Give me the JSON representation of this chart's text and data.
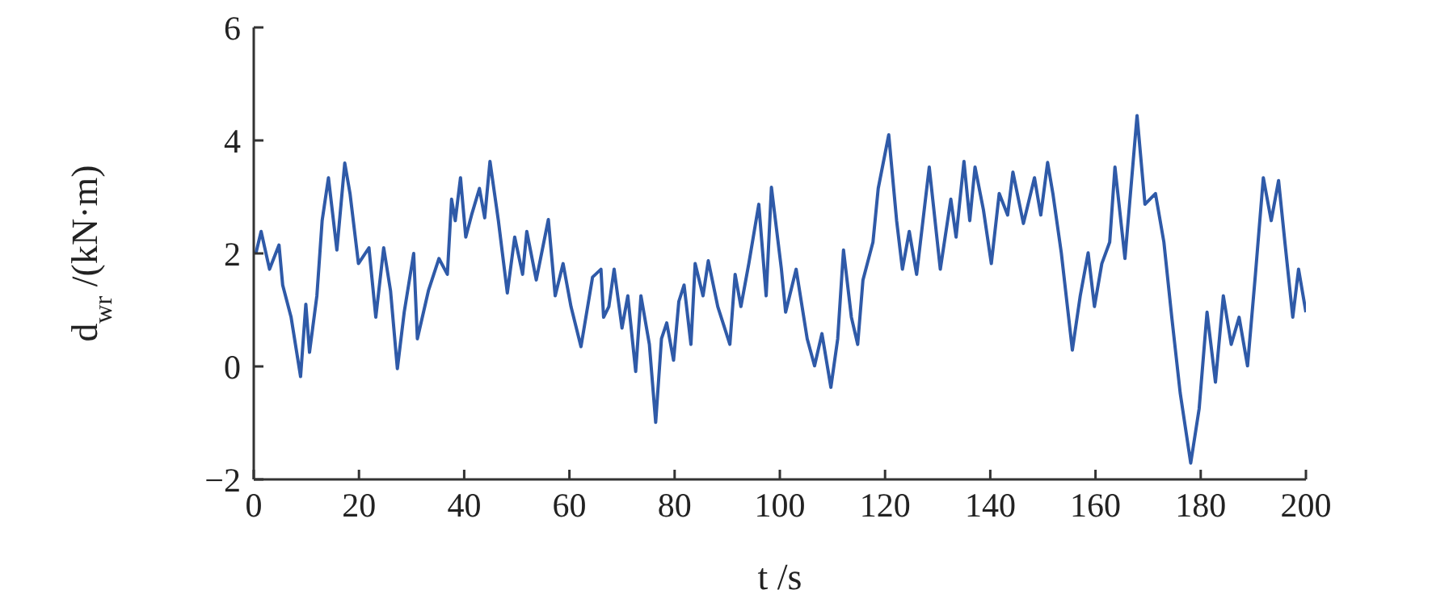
{
  "chart_data": {
    "type": "line",
    "xlabel": "t /s",
    "ylabel": "d$_{wr}$ /(kN·m)",
    "xlim": [
      0,
      200
    ],
    "xticks": [
      0,
      20,
      40,
      60,
      80,
      100,
      120,
      140,
      160,
      180,
      200
    ],
    "ylim": [
      -2,
      6
    ],
    "yticks": [
      -2,
      0,
      2,
      4,
      6
    ],
    "grid": false,
    "legend": false,
    "marker": "none",
    "line_style": "solid",
    "series": [
      {
        "color": "#2f5aa8",
        "x": [
          0.4,
          1.4,
          3,
          4.8,
          5.5,
          7.1,
          8.9,
          9.9,
          10.6,
          12,
          13,
          14.2,
          15.8,
          17.3,
          18.3,
          19.9,
          21.9,
          23.2,
          24.7,
          26,
          27.3,
          28.6,
          30.4,
          31.1,
          33.2,
          35.2,
          36.8,
          37.6,
          38.3,
          39.3,
          40.3,
          41.4,
          42.9,
          43.9,
          44.9,
          46.5,
          48.2,
          49.6,
          51.1,
          51.9,
          53.7,
          56,
          57.3,
          58.8,
          60.3,
          62.2,
          64.4,
          66,
          66.5,
          67.5,
          68.5,
          70,
          71.1,
          72.6,
          73.6,
          75.2,
          76.4,
          77.5,
          78.5,
          79.8,
          80.8,
          81.8,
          83.1,
          83.9,
          85.4,
          86.4,
          88.2,
          90.5,
          91.5,
          92.6,
          94.1,
          96,
          97.4,
          98.4,
          100.3,
          101.1,
          103.1,
          105.2,
          106.6,
          108,
          109.7,
          111,
          112.1,
          113.6,
          114.8,
          115.8,
          117.7,
          118.7,
          120.7,
          122.2,
          123.3,
          124.6,
          126,
          128.4,
          130.5,
          132.5,
          133.5,
          135,
          136.1,
          137.1,
          138.7,
          140.2,
          141.7,
          143.3,
          144.3,
          146.3,
          148.4,
          149.6,
          150.9,
          151.9,
          153.5,
          155.6,
          157.1,
          158.6,
          159.8,
          161.2,
          162.7,
          163.7,
          165.6,
          167.9,
          169.4,
          171.4,
          173,
          174.5,
          176.1,
          178.1,
          179.7,
          181.2,
          182.8,
          184.3,
          185.8,
          187.3,
          188.9,
          190.4,
          191.9,
          193.4,
          194.8,
          196,
          197.5,
          198.6,
          200
        ],
        "values": [
          2.0,
          2.39,
          1.72,
          2.15,
          1.44,
          0.87,
          -0.18,
          1.1,
          0.25,
          1.25,
          2.58,
          3.34,
          2.06,
          3.6,
          3.06,
          1.82,
          2.1,
          0.87,
          2.1,
          1.34,
          -0.04,
          0.96,
          2.0,
          0.49,
          1.34,
          1.91,
          1.63,
          2.96,
          2.58,
          3.34,
          2.29,
          2.68,
          3.15,
          2.63,
          3.63,
          2.58,
          1.3,
          2.29,
          1.63,
          2.39,
          1.53,
          2.6,
          1.25,
          1.82,
          1.06,
          0.35,
          1.58,
          1.72,
          0.87,
          1.06,
          1.72,
          0.68,
          1.25,
          -0.09,
          1.25,
          0.39,
          -0.99,
          0.49,
          0.77,
          0.11,
          1.15,
          1.44,
          0.39,
          1.82,
          1.25,
          1.87,
          1.06,
          0.39,
          1.63,
          1.06,
          1.82,
          2.87,
          1.25,
          3.17,
          1.72,
          0.96,
          1.72,
          0.49,
          0.01,
          0.58,
          -0.37,
          0.49,
          2.06,
          0.87,
          0.39,
          1.53,
          2.2,
          3.15,
          4.1,
          2.58,
          1.72,
          2.39,
          1.63,
          3.53,
          1.72,
          2.96,
          2.29,
          3.63,
          2.58,
          3.53,
          2.77,
          1.82,
          3.06,
          2.68,
          3.44,
          2.53,
          3.34,
          2.68,
          3.61,
          3.06,
          2.01,
          0.29,
          1.25,
          2.01,
          1.06,
          1.82,
          2.2,
          3.53,
          1.91,
          4.44,
          2.87,
          3.06,
          2.2,
          0.87,
          -0.47,
          -1.71,
          -0.75,
          0.96,
          -0.28,
          1.25,
          0.39,
          0.87,
          0.01,
          1.63,
          3.34,
          2.58,
          3.29,
          2.2,
          0.87,
          1.72,
          0.96
        ]
      }
    ]
  }
}
